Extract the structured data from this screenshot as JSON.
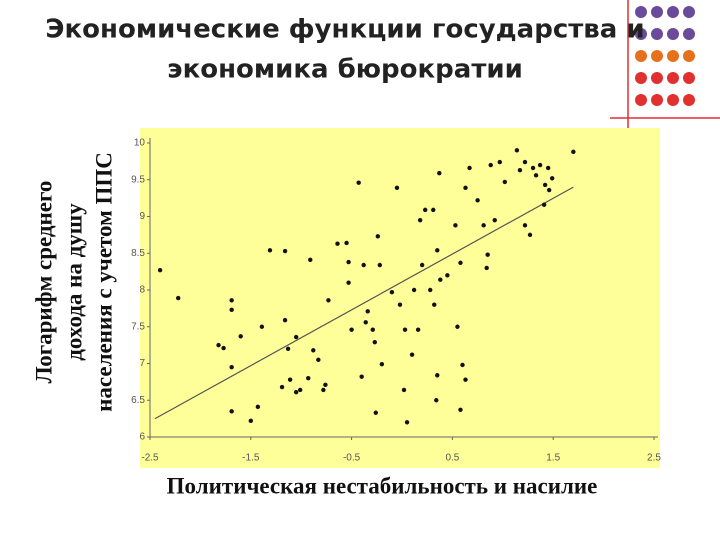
{
  "chart_data": {
    "type": "scatter",
    "title": [
      "Экономические функции государства и",
      "экономика бюрократии"
    ],
    "y_label": [
      "Логарифм среднего",
      "дохода на душу",
      "населения с учетом ППС"
    ],
    "x_label": "Политическая нестабильность и насилие",
    "xlim": [
      -2.5,
      2.5
    ],
    "ylim": [
      6,
      10
    ],
    "xticks": [
      -2.5,
      -1.5,
      -0.5,
      0.5,
      1.5,
      2.5
    ],
    "yticks": [
      6,
      6.5,
      7,
      7.5,
      8,
      8.5,
      9,
      9.5,
      10
    ],
    "color": "#111111",
    "background": "#ffff99",
    "trend": {
      "x": [
        -2.45,
        1.7
      ],
      "values": [
        6.25,
        9.4
      ]
    },
    "x": [
      -2.4,
      -2.22,
      -1.69,
      -1.69,
      -1.82,
      -1.77,
      -1.69,
      -1.6,
      -1.69,
      -1.5,
      -1.43,
      -1.39,
      -1.16,
      -1.31,
      -1.16,
      -1.13,
      -1.05,
      -1.19,
      -1.11,
      -1.01,
      -0.93,
      -1.05,
      -0.91,
      -0.88,
      -0.83,
      -0.76,
      -0.78,
      -0.73,
      -0.64,
      -0.55,
      -0.53,
      -0.43,
      -0.5,
      -0.53,
      -0.38,
      -0.36,
      -0.34,
      -0.29,
      -0.24,
      -0.27,
      -0.22,
      -0.2,
      -0.4,
      -0.26,
      -0.1,
      -0.05,
      -0.02,
      0.02,
      0.05,
      0.03,
      0.1,
      0.12,
      0.16,
      0.18,
      0.2,
      0.23,
      0.31,
      0.35,
      0.28,
      0.38,
      0.32,
      0.35,
      0.34,
      0.37,
      0.45,
      0.53,
      0.55,
      0.58,
      0.6,
      0.63,
      0.58,
      0.67,
      0.63,
      0.75,
      0.81,
      0.84,
      0.88,
      0.85,
      0.92,
      0.97,
      1.02,
      1.14,
      1.17,
      1.22,
      1.22,
      1.3,
      1.33,
      1.37,
      1.42,
      1.45,
      1.46,
      1.41,
      1.49,
      1.7,
      1.27
    ],
    "values": [
      8.27,
      7.89,
      7.86,
      7.73,
      7.25,
      7.21,
      6.95,
      7.37,
      6.35,
      6.22,
      6.41,
      7.5,
      8.53,
      8.54,
      7.59,
      7.2,
      7.36,
      6.68,
      6.78,
      6.64,
      6.8,
      6.61,
      8.41,
      7.18,
      7.05,
      6.71,
      6.64,
      7.86,
      8.63,
      8.64,
      8.38,
      9.46,
      7.46,
      8.1,
      8.34,
      7.56,
      7.71,
      7.46,
      8.73,
      7.29,
      8.34,
      6.99,
      6.82,
      6.33,
      7.97,
      9.39,
      7.8,
      6.64,
      6.2,
      7.46,
      7.12,
      8.0,
      7.46,
      8.95,
      8.34,
      9.09,
      9.09,
      8.54,
      8.0,
      8.14,
      7.8,
      6.84,
      6.5,
      9.59,
      8.2,
      8.88,
      7.5,
      8.37,
      6.98,
      6.78,
      6.37,
      9.66,
      9.39,
      9.22,
      8.88,
      8.3,
      9.7,
      8.48,
      8.95,
      9.74,
      9.47,
      9.9,
      9.63,
      8.88,
      9.74,
      9.66,
      9.56,
      9.7,
      9.43,
      9.66,
      9.36,
      9.16,
      9.52,
      9.88,
      8.75
    ]
  }
}
